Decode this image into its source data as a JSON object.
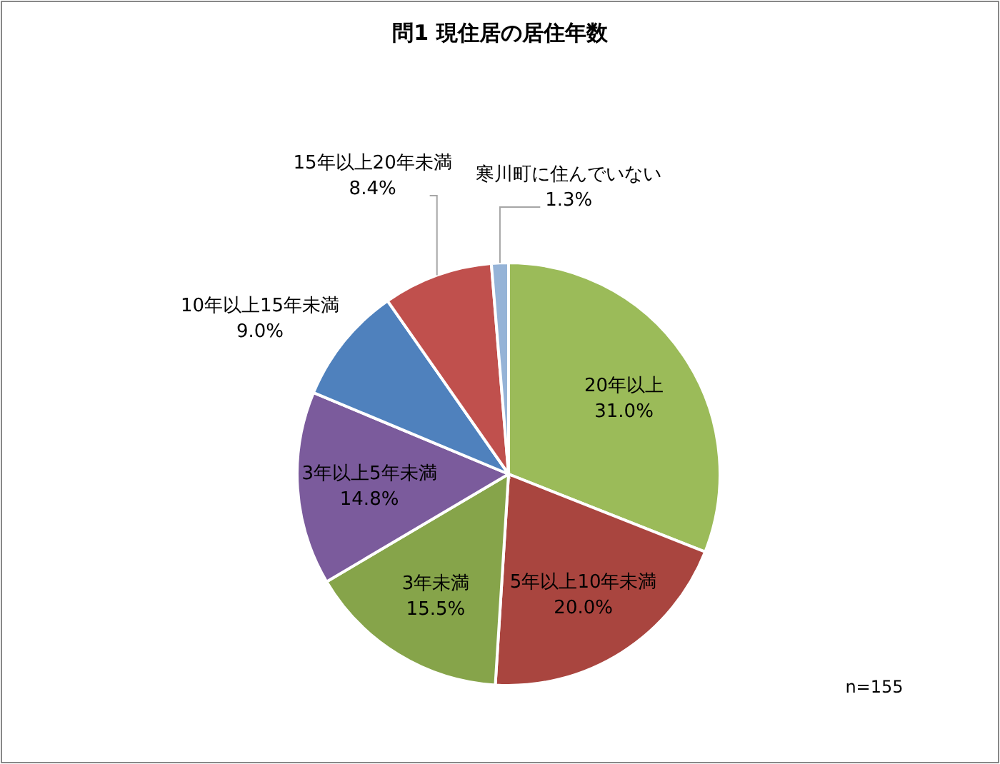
{
  "chart_data": {
    "type": "pie",
    "title": "問1 現住居の居住年数",
    "categories": [
      "20年以上",
      "5年以上10年未満",
      "3年未満",
      "3年以上5年未満",
      "10年以上15年未満",
      "15年以上20年未満",
      "寒川町に住んでいない"
    ],
    "values": [
      31.0,
      20.0,
      15.5,
      14.8,
      9.0,
      8.4,
      1.3
    ],
    "value_labels": [
      "31.0%",
      "20.0%",
      "15.5%",
      "14.8%",
      "9.0%",
      "8.4%",
      "1.3%"
    ],
    "colors": [
      "#9bbb59",
      "#a9453f",
      "#86a44a",
      "#7b5b9c",
      "#4f81bd",
      "#c0504d",
      "#95b3d7"
    ],
    "annotations": [
      "n=155"
    ]
  }
}
